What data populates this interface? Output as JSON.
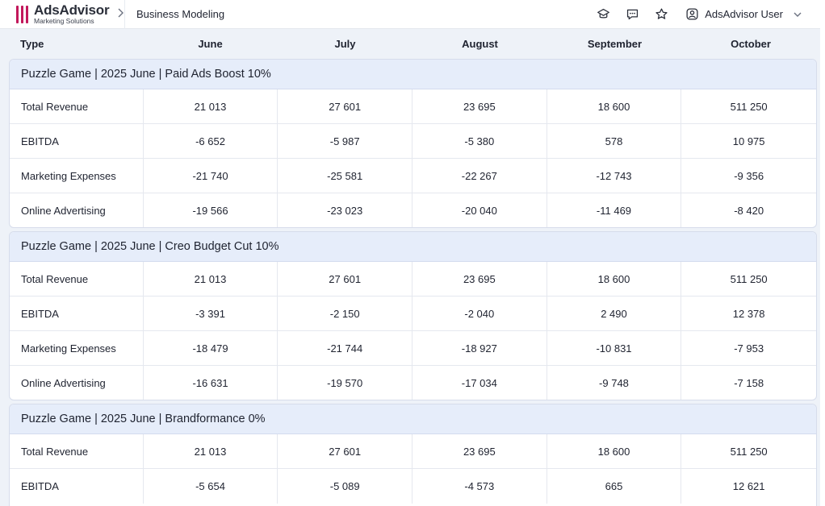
{
  "app": {
    "logo_name": "AdsAdvisor",
    "logo_sub": "Marketing Solutions",
    "breadcrumb": "Business Modeling",
    "user_name": "AdsAdvisor User",
    "brand_color": "#c2185b"
  },
  "columns": {
    "type": "Type",
    "months": [
      "June",
      "July",
      "August",
      "September",
      "October"
    ]
  },
  "sections": [
    {
      "title": "Puzzle Game | 2025 June | Paid Ads Boost 10%",
      "rows": [
        {
          "type": "Total Revenue",
          "values": [
            "21 013",
            "27 601",
            "23 695",
            "18 600",
            "511 250"
          ]
        },
        {
          "type": "EBITDA",
          "values": [
            "-6 652",
            "-5 987",
            "-5 380",
            "578",
            "10 975"
          ]
        },
        {
          "type": "Marketing Expenses",
          "values": [
            "-21 740",
            "-25 581",
            "-22 267",
            "-12 743",
            "-9 356"
          ]
        },
        {
          "type": "Online Advertising",
          "values": [
            "-19 566",
            "-23 023",
            "-20 040",
            "-11 469",
            "-8 420"
          ]
        }
      ]
    },
    {
      "title": "Puzzle Game | 2025 June | Creo Budget Cut 10%",
      "rows": [
        {
          "type": "Total Revenue",
          "values": [
            "21 013",
            "27 601",
            "23 695",
            "18 600",
            "511 250"
          ]
        },
        {
          "type": "EBITDA",
          "values": [
            "-3 391",
            "-2 150",
            "-2 040",
            "2 490",
            "12 378"
          ]
        },
        {
          "type": "Marketing Expenses",
          "values": [
            "-18 479",
            "-21 744",
            "-18 927",
            "-10 831",
            "-7 953"
          ]
        },
        {
          "type": "Online Advertising",
          "values": [
            "-16 631",
            "-19 570",
            "-17 034",
            "-9 748",
            "-7 158"
          ]
        }
      ]
    },
    {
      "title": "Puzzle Game | 2025 June | Brandformance 0%",
      "rows": [
        {
          "type": "Total Revenue",
          "values": [
            "21 013",
            "27 601",
            "23 695",
            "18 600",
            "511 250"
          ]
        },
        {
          "type": "EBITDA",
          "values": [
            "-5 654",
            "-5 089",
            "-4 573",
            "665",
            "12 621"
          ]
        }
      ]
    }
  ],
  "icons": {
    "top_actions": [
      "graduation-cap-icon",
      "chat-icon",
      "star-icon"
    ],
    "user": "user-circle-icon"
  }
}
